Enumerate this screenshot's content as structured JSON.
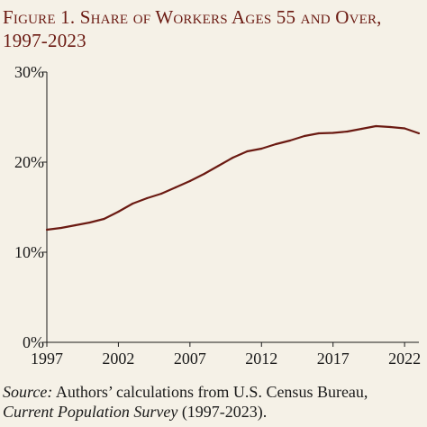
{
  "title": "Figure 1. Share of Workers Ages 55 and Over, 1997-2023",
  "source": {
    "label": "Source:",
    "line1": " Authors’ calculations from U.S. Census Bureau,",
    "survey": "Current Population Survey",
    "line2_rest": " (1997-2023)."
  },
  "colors": {
    "line": "#6b1a12",
    "title": "#6b1a12",
    "background": "#f5f1e7"
  },
  "chart_data": {
    "type": "line",
    "title": "Figure 1. Share of Workers Ages 55 and Over, 1997-2023",
    "xlabel": "",
    "ylabel": "",
    "x": [
      1997,
      1998,
      1999,
      2000,
      2001,
      2002,
      2003,
      2004,
      2005,
      2006,
      2007,
      2008,
      2009,
      2010,
      2011,
      2012,
      2013,
      2014,
      2015,
      2016,
      2017,
      2018,
      2019,
      2020,
      2021,
      2022,
      2023
    ],
    "y": [
      12.5,
      12.7,
      13.0,
      13.3,
      13.7,
      14.5,
      15.4,
      16.0,
      16.5,
      17.2,
      17.9,
      18.7,
      19.6,
      20.5,
      21.2,
      21.5,
      22.0,
      22.4,
      22.9,
      23.2,
      23.25,
      23.4,
      23.7,
      24.0,
      23.9,
      23.75,
      23.2
    ],
    "xticks": [
      "1997",
      "2002",
      "2007",
      "2012",
      "2017",
      "2022"
    ],
    "yticks": [
      "0%",
      "10%",
      "20%",
      "30%"
    ],
    "xlim": [
      1997,
      2023
    ],
    "ylim": [
      0,
      30
    ],
    "grid": false,
    "legend": "none"
  }
}
